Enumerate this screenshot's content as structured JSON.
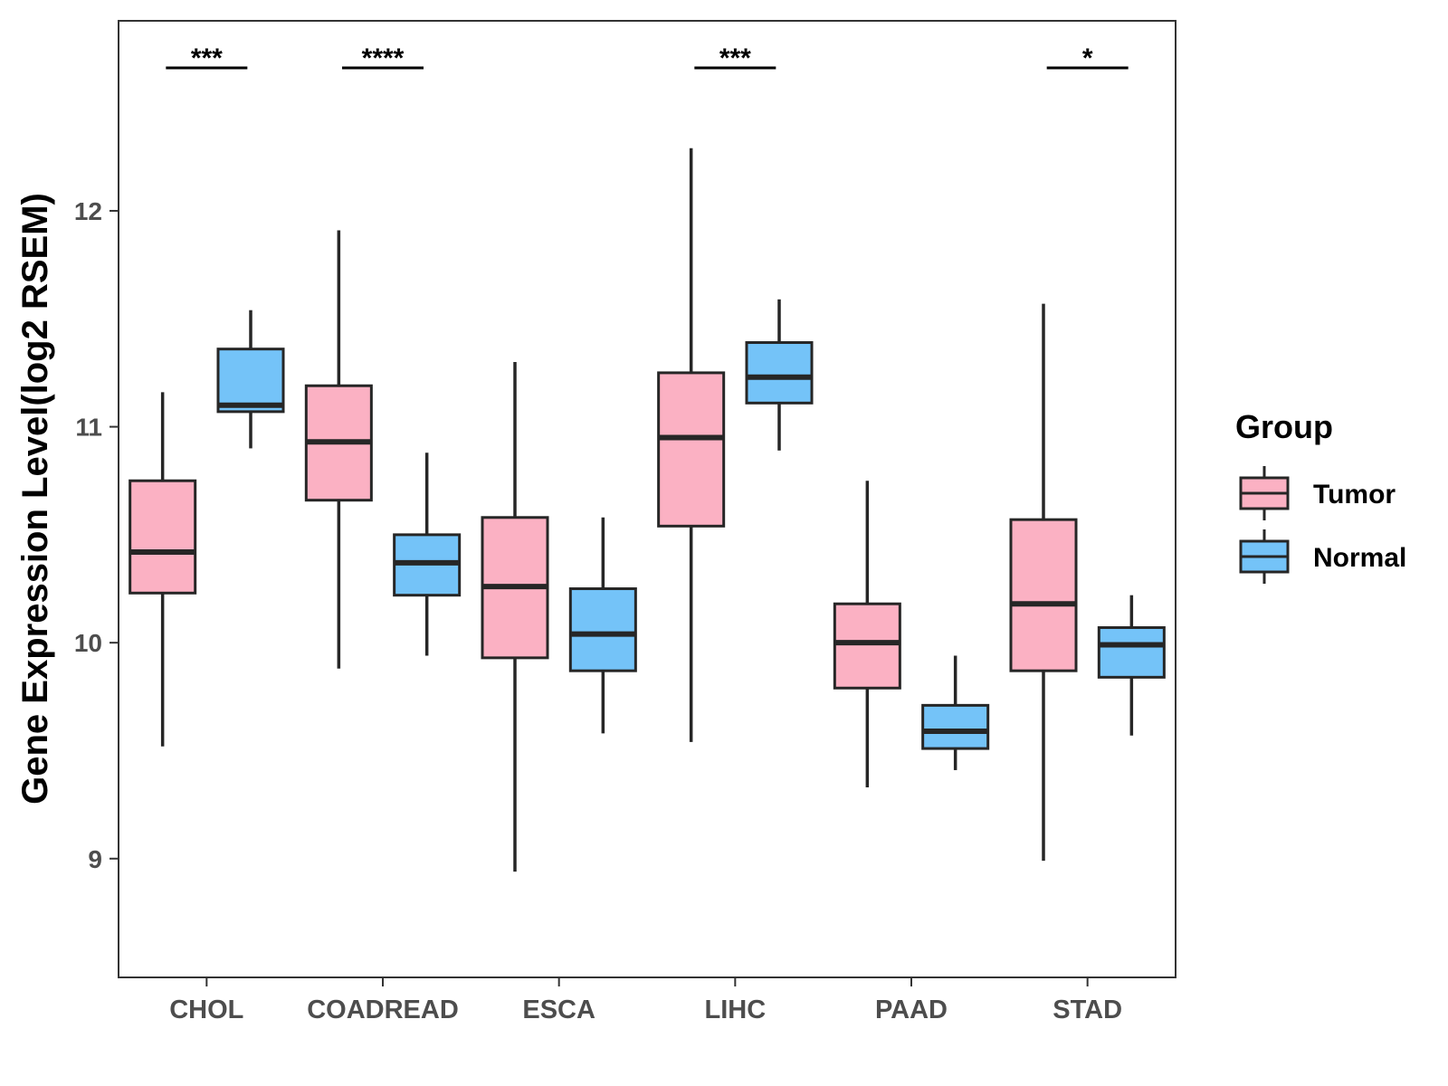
{
  "chart_data": {
    "type": "boxplot",
    "title": "",
    "xlabel": "",
    "ylabel": "Gene Expression Level(log2 RSEM)",
    "ylim": [
      8.45,
      12.88
    ],
    "yticks": [
      9,
      10,
      11,
      12
    ],
    "grid": false,
    "categories": [
      "CHOL",
      "COADREAD",
      "ESCA",
      "LIHC",
      "PAAD",
      "STAD"
    ],
    "legend": {
      "title": "Group",
      "position": "right",
      "entries": [
        {
          "name": "Tumor",
          "color": "#FBB1C3"
        },
        {
          "name": "Normal",
          "color": "#74C3F8"
        }
      ]
    },
    "series": [
      {
        "name": "Tumor",
        "color": "#FBB1C3",
        "boxes": [
          {
            "category": "CHOL",
            "min": 9.52,
            "q1": 10.23,
            "median": 10.42,
            "q3": 10.75,
            "max": 11.16
          },
          {
            "category": "COADREAD",
            "min": 9.88,
            "q1": 10.66,
            "median": 10.93,
            "q3": 11.19,
            "max": 11.91
          },
          {
            "category": "ESCA",
            "min": 8.94,
            "q1": 9.93,
            "median": 10.26,
            "q3": 10.58,
            "max": 11.3
          },
          {
            "category": "LIHC",
            "min": 9.54,
            "q1": 10.54,
            "median": 10.95,
            "q3": 11.25,
            "max": 12.29
          },
          {
            "category": "PAAD",
            "min": 9.33,
            "q1": 9.79,
            "median": 10.0,
            "q3": 10.18,
            "max": 10.75
          },
          {
            "category": "STAD",
            "min": 8.99,
            "q1": 9.87,
            "median": 10.18,
            "q3": 10.57,
            "max": 11.57
          }
        ]
      },
      {
        "name": "Normal",
        "color": "#74C3F8",
        "boxes": [
          {
            "category": "CHOL",
            "min": 10.9,
            "q1": 11.07,
            "median": 11.1,
            "q3": 11.36,
            "max": 11.54
          },
          {
            "category": "COADREAD",
            "min": 9.94,
            "q1": 10.22,
            "median": 10.37,
            "q3": 10.5,
            "max": 10.88
          },
          {
            "category": "ESCA",
            "min": 9.58,
            "q1": 9.87,
            "median": 10.04,
            "q3": 10.25,
            "max": 10.58
          },
          {
            "category": "LIHC",
            "min": 10.89,
            "q1": 11.11,
            "median": 11.23,
            "q3": 11.39,
            "max": 11.59
          },
          {
            "category": "PAAD",
            "min": 9.41,
            "q1": 9.51,
            "median": 9.59,
            "q3": 9.71,
            "max": 9.94
          },
          {
            "category": "STAD",
            "min": 9.57,
            "q1": 9.84,
            "median": 9.99,
            "q3": 10.07,
            "max": 10.22
          }
        ]
      }
    ],
    "significance": [
      {
        "category": "CHOL",
        "label": "***"
      },
      {
        "category": "COADREAD",
        "label": "****"
      },
      {
        "category": "LIHC",
        "label": "***"
      },
      {
        "category": "STAD",
        "label": "*"
      }
    ]
  }
}
